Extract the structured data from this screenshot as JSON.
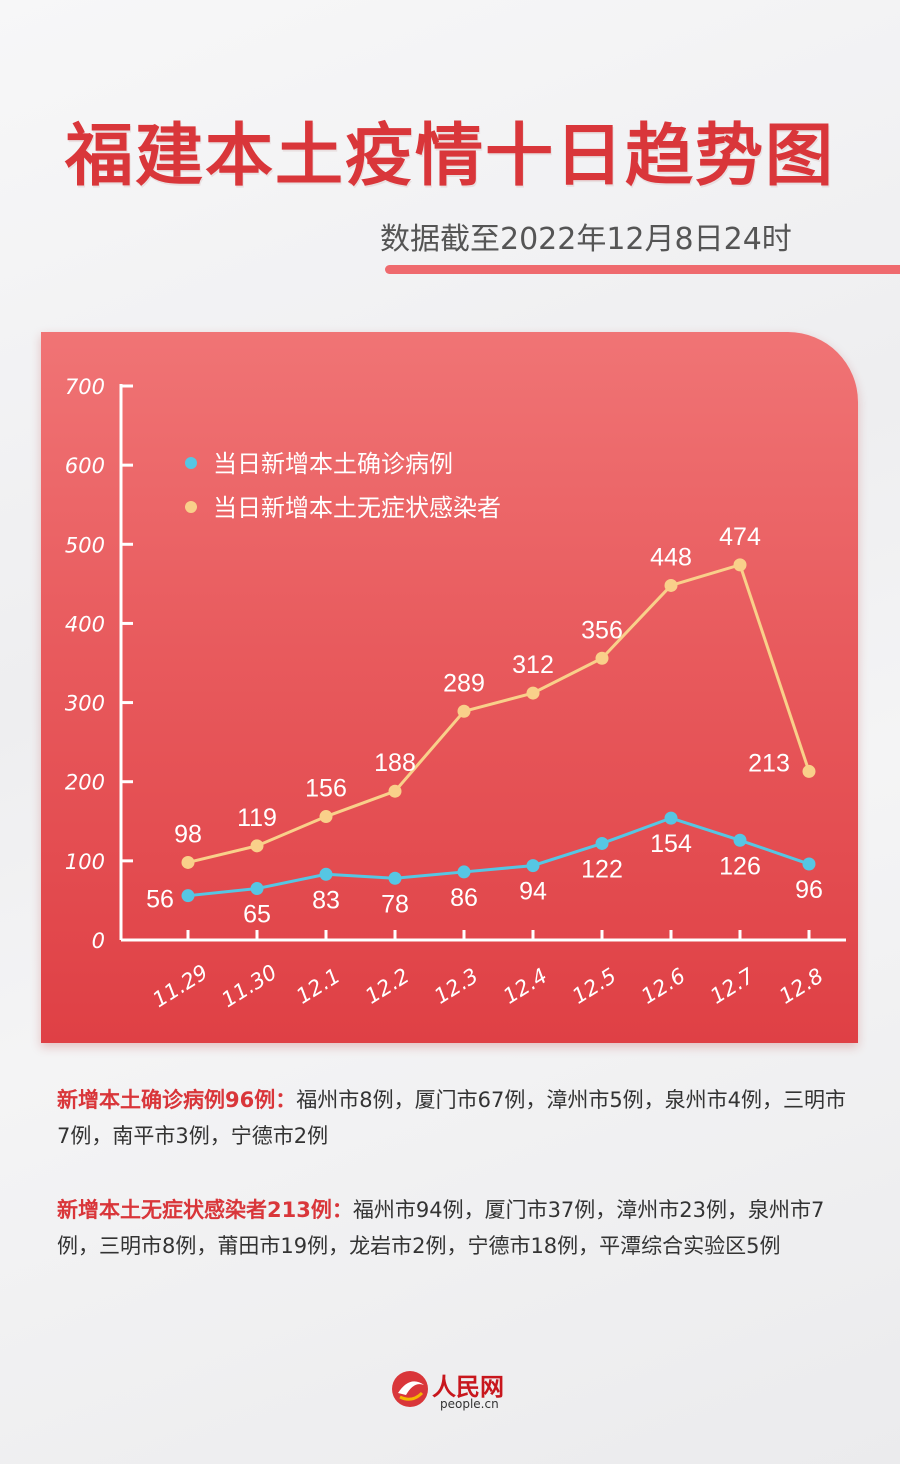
{
  "title": "福建本土疫情十日趋势图",
  "subtitle": "数据截至2022年12月8日24时",
  "colors": {
    "accent": "#d9363a",
    "confirmed": "#56c6e3",
    "asymptomatic": "#f9d08a",
    "panel_top": "#f07475",
    "panel_bottom": "#df4045"
  },
  "chart_data": {
    "type": "line",
    "title": "",
    "xlabel": "",
    "ylabel": "",
    "ylim": [
      0,
      700
    ],
    "yticks": [
      0,
      100,
      200,
      300,
      400,
      500,
      600,
      700
    ],
    "categories": [
      "11.29",
      "11.30",
      "12.1",
      "12.2",
      "12.3",
      "12.4",
      "12.5",
      "12.6",
      "12.7",
      "12.8"
    ],
    "series": [
      {
        "name": "当日新增本土确诊病例",
        "values": [
          56,
          65,
          83,
          78,
          86,
          94,
          122,
          154,
          126,
          96
        ]
      },
      {
        "name": "当日新增本土无症状感染者",
        "values": [
          98,
          119,
          156,
          188,
          289,
          312,
          356,
          448,
          474,
          213
        ]
      }
    ],
    "legend_position": "top-left"
  },
  "notes": [
    {
      "label": "新增本土确诊病例96例：",
      "text": "福州市8例，厦门市67例，漳州市5例，泉州市4例，三明市7例，南平市3例，宁德市2例"
    },
    {
      "label": "新增本土无症状感染者213例：",
      "text": "福州市94例，厦门市37例，漳州市23例，泉州市7例，三明市8例，莆田市19例，龙岩市2例，宁德市18例，平潭综合实验区5例"
    }
  ],
  "logo": {
    "name": "人民网",
    "url": "people.cn"
  }
}
